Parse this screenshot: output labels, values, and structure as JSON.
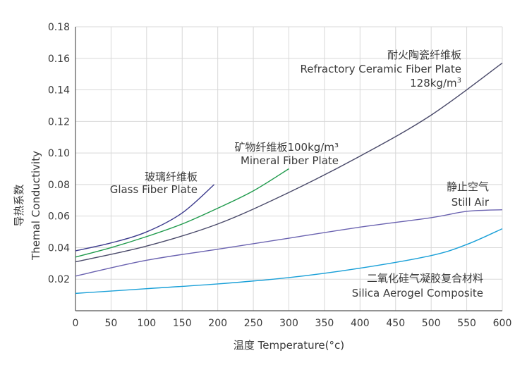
{
  "chart_data": {
    "type": "line",
    "xlabel": "温度 Temperature(°c)",
    "ylabel": [
      "导热系数",
      "Themal Conductivity"
    ],
    "xlim": [
      0,
      600
    ],
    "ylim": [
      0,
      0.18
    ],
    "x_ticks": [
      "0",
      "50",
      "100",
      "150",
      "200",
      "250",
      "300",
      "350",
      "400",
      "450",
      "500",
      "550",
      "600"
    ],
    "y_ticks": [
      "0.02",
      "0.04",
      "0.06",
      "0.08",
      "0.10",
      "0.12",
      "0.14",
      "0.16",
      "0.18"
    ],
    "grid": true,
    "series": [
      {
        "name": "玻璃纤维板 Glass Fiber Plate",
        "label_cn": "玻璃纤维板",
        "label_en": "Glass Fiber Plate",
        "color": "#3b3a8c",
        "x": [
          0,
          50,
          100,
          150,
          195
        ],
        "y": [
          0.038,
          0.043,
          0.05,
          0.062,
          0.08
        ]
      },
      {
        "name": "矿物纤维板100kg/m³ Mineral Fiber Plate",
        "label_cn": "矿物纤维板100kg/m³",
        "label_en": "Mineral Fiber Plate",
        "color": "#1f9a4c",
        "x": [
          0,
          50,
          100,
          150,
          200,
          250,
          300
        ],
        "y": [
          0.034,
          0.04,
          0.047,
          0.055,
          0.065,
          0.076,
          0.09
        ]
      },
      {
        "name": "耐火陶瓷纤维板 Refractory Ceramic Fiber Plate 128kg/m3",
        "label_cn": "耐火陶瓷纤维板",
        "label_en": "Refractory Ceramic Fiber Plate",
        "label_extra": "128kg/m",
        "label_sup": "3",
        "color": "#4a4a6a",
        "x": [
          0,
          100,
          200,
          300,
          400,
          500,
          600
        ],
        "y": [
          0.031,
          0.041,
          0.055,
          0.075,
          0.098,
          0.124,
          0.157
        ]
      },
      {
        "name": "静止空气 Still Air",
        "label_cn": "静止空气",
        "label_en": "Still Air",
        "color": "#6a62b0",
        "x": [
          0,
          100,
          200,
          300,
          400,
          500,
          550,
          600
        ],
        "y": [
          0.022,
          0.032,
          0.039,
          0.046,
          0.053,
          0.059,
          0.063,
          0.064
        ]
      },
      {
        "name": "二氧化硅气凝胶复合材料 Silica Aerogel Composite",
        "label_cn": "二氧化硅气凝胶复合材料",
        "label_en": "Silica Aerogel Composite",
        "color": "#1aa0d8",
        "x": [
          0,
          100,
          200,
          300,
          400,
          500,
          550,
          600
        ],
        "y": [
          0.011,
          0.014,
          0.017,
          0.021,
          0.027,
          0.035,
          0.042,
          0.052
        ]
      }
    ]
  }
}
